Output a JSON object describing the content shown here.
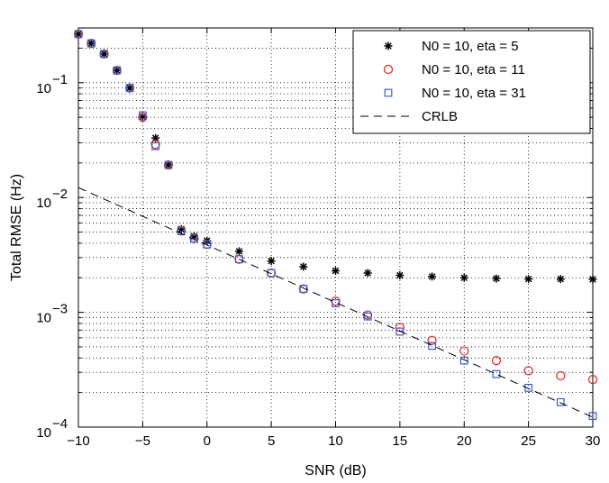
{
  "chart_data": {
    "type": "scatter",
    "title": "",
    "xlabel": "SNR (dB)",
    "ylabel": "Total RMSE (Hz)",
    "xlim": [
      -10,
      30
    ],
    "ylim": [
      0.0001,
      0.3
    ],
    "yscale": "log",
    "grid": true,
    "legend_position": "top-right",
    "x_ticks": [
      -10,
      -5,
      0,
      5,
      10,
      15,
      20,
      25,
      30
    ],
    "x_tick_labels": [
      "−10",
      "−5",
      "0",
      "5",
      "10",
      "15",
      "20",
      "25",
      "30"
    ],
    "y_ticks": [
      {
        "value": 0.0001,
        "base": "10",
        "exp": "−4"
      },
      {
        "value": 0.001,
        "base": "10",
        "exp": "−3"
      },
      {
        "value": 0.01,
        "base": "10",
        "exp": "−2"
      },
      {
        "value": 0.1,
        "base": "10",
        "exp": "−1"
      }
    ],
    "series": [
      {
        "name": "N0 = 10, eta = 5",
        "marker": "star",
        "color": "#000000",
        "x": [
          -10,
          -9,
          -8,
          -7,
          -6,
          -5,
          -4,
          -3,
          -2,
          -1,
          0,
          2.5,
          5,
          7.5,
          10,
          12.5,
          15,
          17.5,
          20,
          22.5,
          25,
          27.5,
          30
        ],
        "y": [
          0.265,
          0.22,
          0.178,
          0.128,
          0.09,
          0.05,
          0.033,
          0.0192,
          0.0053,
          0.0046,
          0.0042,
          0.0034,
          0.0028,
          0.0025,
          0.0023,
          0.0022,
          0.0021,
          0.00205,
          0.002,
          0.00197,
          0.00195,
          0.00195,
          0.00194
        ]
      },
      {
        "name": "N0 = 10, eta = 11",
        "marker": "circle",
        "color": "#e32222",
        "x": [
          -10,
          -9,
          -8,
          -7,
          -6,
          -5,
          -4,
          -3,
          -2,
          -1,
          0,
          2.5,
          5,
          7.5,
          10,
          12.5,
          15,
          17.5,
          20,
          22.5,
          25,
          27.5,
          30
        ],
        "y": [
          0.265,
          0.22,
          0.178,
          0.128,
          0.09,
          0.05,
          0.029,
          0.0192,
          0.0051,
          0.0044,
          0.0039,
          0.0029,
          0.0022,
          0.0016,
          0.00125,
          0.00095,
          0.00074,
          0.00057,
          0.00046,
          0.00038,
          0.00031,
          0.00028,
          0.00026
        ]
      },
      {
        "name": "N0 = 10, eta = 31",
        "marker": "square",
        "color": "#3a5fcd",
        "x": [
          -10,
          -9,
          -8,
          -7,
          -6,
          -5,
          -4,
          -3,
          -2,
          -1,
          0,
          2.5,
          5,
          7.5,
          10,
          12.5,
          15,
          17.5,
          20,
          22.5,
          25,
          27.5,
          30
        ],
        "y": [
          0.265,
          0.22,
          0.178,
          0.128,
          0.09,
          0.052,
          0.028,
          0.0192,
          0.0051,
          0.0044,
          0.0039,
          0.0029,
          0.0022,
          0.0016,
          0.0012,
          0.00092,
          0.00068,
          0.00051,
          0.00038,
          0.00029,
          0.00022,
          0.000165,
          0.000125
        ]
      },
      {
        "name": "CRLB",
        "marker": "dashed-line",
        "color": "#000000",
        "x": [
          -10,
          30
        ],
        "y": [
          0.0122,
          0.000122
        ]
      }
    ]
  }
}
